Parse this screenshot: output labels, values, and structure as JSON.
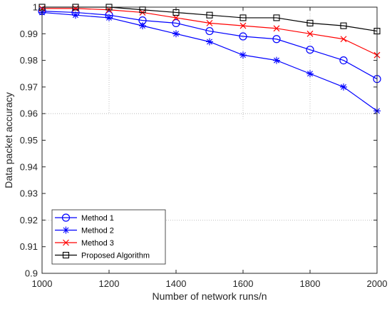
{
  "chart_data": {
    "type": "line",
    "title": "",
    "xlabel": "Number of network runs/n",
    "ylabel": "Data packet accuracy",
    "x": [
      1000,
      1100,
      1200,
      1300,
      1400,
      1500,
      1600,
      1700,
      1800,
      1900,
      2000
    ],
    "xlim": [
      1000,
      2000
    ],
    "ylim": [
      0.9,
      1.0
    ],
    "xticks": [
      "1000",
      "1200",
      "1400",
      "1600",
      "1800",
      "2000"
    ],
    "yticks": [
      "0.9",
      "0.91",
      "0.92",
      "0.93",
      "0.94",
      "0.95",
      "0.96",
      "0.97",
      "0.98",
      "0.99",
      "1"
    ],
    "grid": "partial dotted",
    "legend_position": "bottom-left",
    "series": [
      {
        "name": "Method 1",
        "color": "#0000ff",
        "marker": "circle",
        "values": [
          0.9985,
          0.998,
          0.997,
          0.995,
          0.994,
          0.991,
          0.989,
          0.988,
          0.984,
          0.98,
          0.973
        ]
      },
      {
        "name": "Method 2",
        "color": "#0000ff",
        "marker": "star",
        "values": [
          0.998,
          0.997,
          0.996,
          0.993,
          0.99,
          0.987,
          0.982,
          0.98,
          0.975,
          0.97,
          0.961
        ]
      },
      {
        "name": "Method 3",
        "color": "#ff0000",
        "marker": "x",
        "values": [
          0.9995,
          0.9995,
          0.999,
          0.998,
          0.996,
          0.994,
          0.993,
          0.992,
          0.99,
          0.988,
          0.982
        ]
      },
      {
        "name": "Proposed Algorithm",
        "color": "#000000",
        "marker": "square",
        "values": [
          1.0,
          1.0,
          1.0,
          0.999,
          0.998,
          0.997,
          0.996,
          0.996,
          0.994,
          0.993,
          0.991
        ]
      }
    ]
  }
}
